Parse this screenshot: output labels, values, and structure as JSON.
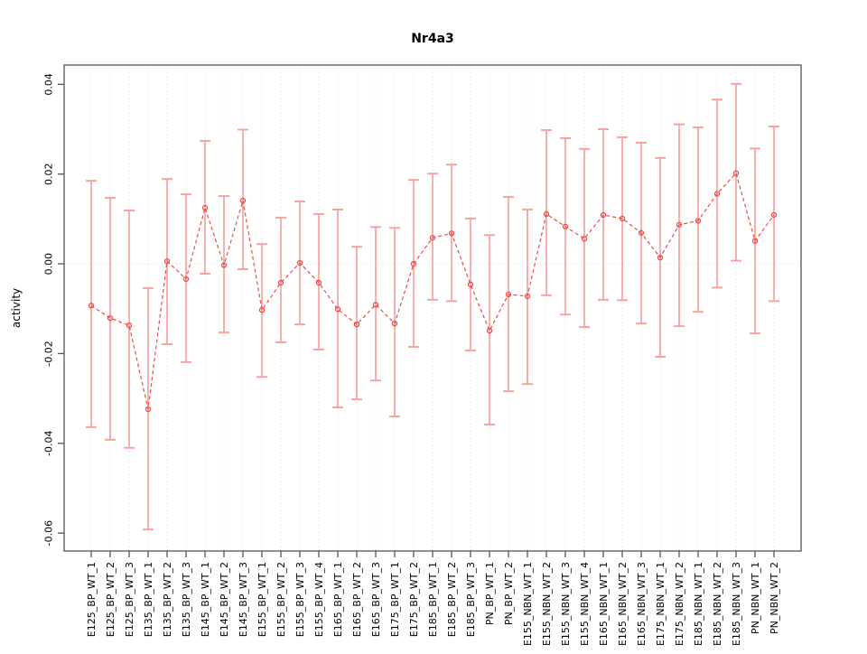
{
  "chart_data": {
    "type": "line",
    "subtype": "points-with-error-bars",
    "title": "Nr4a3",
    "xlabel": "",
    "ylabel": "activity",
    "legend": "none",
    "grid": "vertical dotted gridline at every category; dotted horizontal line at y=0",
    "ylim": [
      -0.064,
      0.0443
    ],
    "yticks": [
      0.04,
      0.02,
      0.0,
      -0.02,
      -0.04,
      -0.06
    ],
    "ytick_labels": [
      "0.04",
      "0.02",
      "0.00",
      "-0.02",
      "-0.04",
      "-0.06"
    ],
    "categories": [
      "E125_BP_WT_1",
      "E125_BP_WT_2",
      "E125_BP_WT_3",
      "E135_BP_WT_1",
      "E135_BP_WT_2",
      "E135_BP_WT_3",
      "E145_BP_WT_1",
      "E145_BP_WT_2",
      "E145_BP_WT_3",
      "E155_BP_WT_1",
      "E155_BP_WT_2",
      "E155_BP_WT_3",
      "E155_BP_WT_4",
      "E165_BP_WT_1",
      "E165_BP_WT_2",
      "E165_BP_WT_3",
      "E175_BP_WT_1",
      "E175_BP_WT_2",
      "E185_BP_WT_1",
      "E185_BP_WT_2",
      "E185_BP_WT_3",
      "PN_BP_WT_1",
      "PN_BP_WT_2",
      "E155_NBN_WT_1",
      "E155_NBN_WT_2",
      "E155_NBN_WT_3",
      "E155_NBN_WT_4",
      "E165_NBN_WT_1",
      "E165_NBN_WT_2",
      "E165_NBN_WT_3",
      "E175_NBN_WT_1",
      "E175_NBN_WT_2",
      "E185_NBN_WT_1",
      "E185_NBN_WT_2",
      "E185_NBN_WT_3",
      "PN_NBN_WT_1",
      "PN_NBN_WT_2"
    ],
    "series": [
      {
        "name": "activity",
        "values": [
          -0.0093,
          -0.0121,
          -0.0137,
          -0.0324,
          0.0006,
          -0.0034,
          0.0125,
          -0.0003,
          0.0141,
          -0.0103,
          -0.0042,
          0.0002,
          -0.0042,
          -0.0101,
          -0.0135,
          -0.0091,
          -0.0133,
          0.0,
          0.0058,
          0.0068,
          -0.0046,
          -0.0149,
          -0.0068,
          -0.0072,
          0.0111,
          0.0083,
          0.0056,
          0.0109,
          0.0101,
          0.0069,
          0.0014,
          0.0087,
          0.0096,
          0.0156,
          0.0202,
          0.0051,
          0.0109
        ],
        "err_low": [
          -0.0364,
          -0.0392,
          -0.041,
          -0.0592,
          -0.0179,
          -0.0219,
          -0.0022,
          -0.0153,
          -0.0012,
          -0.0252,
          -0.0175,
          -0.0135,
          -0.0191,
          -0.032,
          -0.0302,
          -0.026,
          -0.034,
          -0.0185,
          -0.008,
          -0.0083,
          -0.0193,
          -0.0358,
          -0.0284,
          -0.0268,
          -0.007,
          -0.0113,
          -0.0141,
          -0.008,
          -0.0081,
          -0.0133,
          -0.0207,
          -0.0139,
          -0.0107,
          -0.0053,
          0.0007,
          -0.0155,
          -0.0083
        ],
        "err_high": [
          0.0185,
          0.0147,
          0.0119,
          -0.0054,
          0.0189,
          0.0155,
          0.0274,
          0.0151,
          0.0299,
          0.0044,
          0.0103,
          0.0139,
          0.0111,
          0.0121,
          0.0038,
          0.0082,
          0.008,
          0.0187,
          0.0201,
          0.0221,
          0.0101,
          0.0064,
          0.0149,
          0.0121,
          0.0298,
          0.028,
          0.0256,
          0.03,
          0.0282,
          0.027,
          0.0236,
          0.0311,
          0.0304,
          0.0366,
          0.0401,
          0.0257,
          0.0306
        ]
      }
    ],
    "colors": {
      "point": "#ee4d47",
      "line": "#ee4d47",
      "error_bar": "#f58784",
      "error_cap": "#f7a3a0",
      "grid": "#e2e2e2",
      "zero_line": "#dcdcdc",
      "axis": "#555555",
      "text": "#000000",
      "background": "#ffffff"
    }
  }
}
